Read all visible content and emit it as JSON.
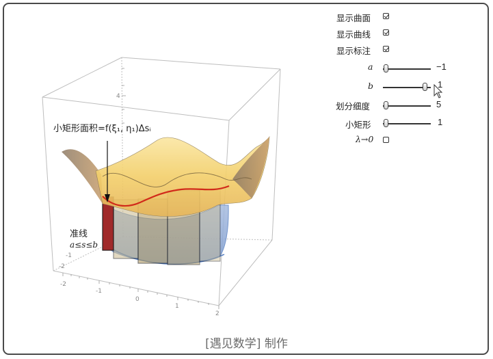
{
  "controls": {
    "show_surface_label": "显示曲面",
    "show_curve_label": "显示曲线",
    "show_annotation_label": "显示标注",
    "show_surface_checked": true,
    "show_curve_checked": true,
    "show_annotation_checked": true,
    "a_label": "a",
    "a_value": "−1",
    "a_fraction": 0.0,
    "b_label": "b",
    "b_value": "1",
    "b_fraction": 0.92,
    "partition_label": "划分细度",
    "partition_value": "5",
    "partition_fraction": 0.0,
    "small_rect_label": "小矩形",
    "small_rect_value": "1",
    "small_rect_fraction": 0.0,
    "lambda_label": "λ→0",
    "lambda_checked": false
  },
  "plot": {
    "annotation_area": "小矩形面积=f(ξ₁, η₁)Δsᵢ",
    "annotation_directrix": "准线",
    "annotation_range": "a≤s≤b",
    "x_ticks": [
      "-2",
      "-1",
      "0",
      "1",
      "2"
    ],
    "y_ticks": [
      "-2",
      "-1"
    ],
    "z_ticks": [
      "4"
    ]
  },
  "footer": {
    "credit": "[遇见数学] 制作"
  },
  "colors": {
    "surface_light": "#f7dc7a",
    "surface_dark": "#b08f5a",
    "curve": "#d12a1a",
    "rect_fill": "#b5a57a",
    "rect_highlight": "#a52a2a",
    "base_blue": "#7f9fce",
    "frame": "#4a4a4a"
  }
}
